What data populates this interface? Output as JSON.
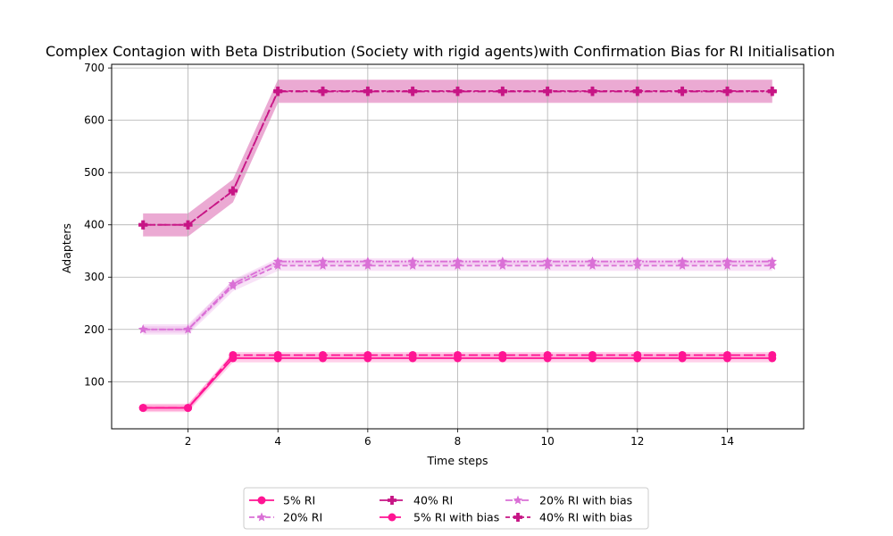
{
  "chart_data": {
    "type": "line",
    "title": "Complex Contagion with Beta Distribution (Society with rigid agents)with Confirmation Bias for RI Initialisation",
    "xlabel": "Time steps",
    "ylabel": "Adapters",
    "xlim": [
      0.3,
      15.7
    ],
    "ylim": [
      10,
      707
    ],
    "xticks": [
      2,
      4,
      6,
      8,
      10,
      12,
      14
    ],
    "yticks": [
      100,
      200,
      300,
      400,
      500,
      600,
      700
    ],
    "grid": true,
    "legend_position": "bottom-center",
    "x": [
      1,
      2,
      3,
      4,
      5,
      6,
      7,
      8,
      9,
      10,
      11,
      12,
      13,
      14,
      15
    ],
    "series": [
      {
        "name": "5% RI",
        "color": "#ff1493",
        "dash": "",
        "marker": "circle",
        "values": [
          50,
          50,
          145,
          145,
          145,
          145,
          145,
          145,
          145,
          145,
          145,
          145,
          145,
          145,
          145
        ],
        "band": [
          8,
          8,
          8,
          8,
          8,
          8,
          8,
          8,
          8,
          8,
          8,
          8,
          8,
          8,
          8
        ]
      },
      {
        "name": "20% RI",
        "color": "#da70d6",
        "dash": "6,3",
        "marker": "star",
        "values": [
          200,
          200,
          283,
          322,
          322,
          322,
          322,
          322,
          322,
          322,
          322,
          322,
          322,
          322,
          322
        ],
        "band": [
          10,
          10,
          10,
          10,
          10,
          10,
          10,
          10,
          10,
          10,
          10,
          10,
          10,
          10,
          10
        ]
      },
      {
        "name": "40% RI",
        "color": "#c71585",
        "dash": "9,3,2,3",
        "marker": "plus",
        "values": [
          400,
          400,
          465,
          655,
          655,
          655,
          655,
          655,
          655,
          655,
          655,
          655,
          655,
          655,
          655
        ],
        "band": [
          22,
          22,
          22,
          22,
          22,
          22,
          22,
          22,
          22,
          22,
          22,
          22,
          22,
          22,
          22
        ]
      },
      {
        "name": "5% RI with bias",
        "color": "#ff1493",
        "dash": "10,4",
        "marker": "circle",
        "values": [
          50,
          50,
          151,
          151,
          151,
          151,
          151,
          151,
          151,
          151,
          151,
          151,
          151,
          151,
          151
        ],
        "band": [
          6,
          6,
          6,
          6,
          6,
          6,
          6,
          6,
          6,
          6,
          6,
          6,
          6,
          6,
          6
        ]
      },
      {
        "name": "20% RI with bias",
        "color": "#da70d6",
        "dash": "8,2,2,2,2,2",
        "marker": "star",
        "values": [
          200,
          200,
          287,
          330,
          330,
          330,
          330,
          330,
          330,
          330,
          330,
          330,
          330,
          330,
          330
        ],
        "band": [
          6,
          6,
          8,
          6,
          6,
          6,
          6,
          6,
          6,
          6,
          6,
          6,
          6,
          6,
          6
        ]
      },
      {
        "name": "40% RI with bias",
        "color": "#c71585",
        "dash": "5,3",
        "marker": "plus",
        "values": [
          400,
          400,
          465,
          656,
          656,
          656,
          656,
          656,
          656,
          656,
          656,
          656,
          656,
          656,
          656
        ],
        "band": [
          22,
          22,
          22,
          22,
          22,
          22,
          22,
          22,
          22,
          22,
          22,
          22,
          22,
          22,
          22
        ]
      }
    ]
  }
}
